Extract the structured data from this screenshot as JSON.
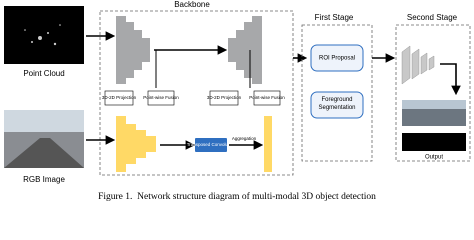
{
  "inputs": {
    "point_cloud": "Point Cloud",
    "rgb_image": "RGB Image"
  },
  "backbone": {
    "title": "Backbone",
    "projection_1": "3D-2D Projection",
    "fusion_1": "Point-wise Fusion",
    "projection_2": "3D-2D Projection",
    "fusion_2": "Point-wise Fusion",
    "transposed_conv": "Transposed Convolution",
    "aggregation": "Aggregation"
  },
  "first_stage": {
    "title": "First Stage",
    "roi": "ROI Proposal",
    "segmentation": "Foreground Segmentation"
  },
  "second_stage": {
    "title": "Second Stage",
    "output": "Output"
  },
  "caption": "Figure 1.  Network structure diagram of multi-modal 3D object detection"
}
